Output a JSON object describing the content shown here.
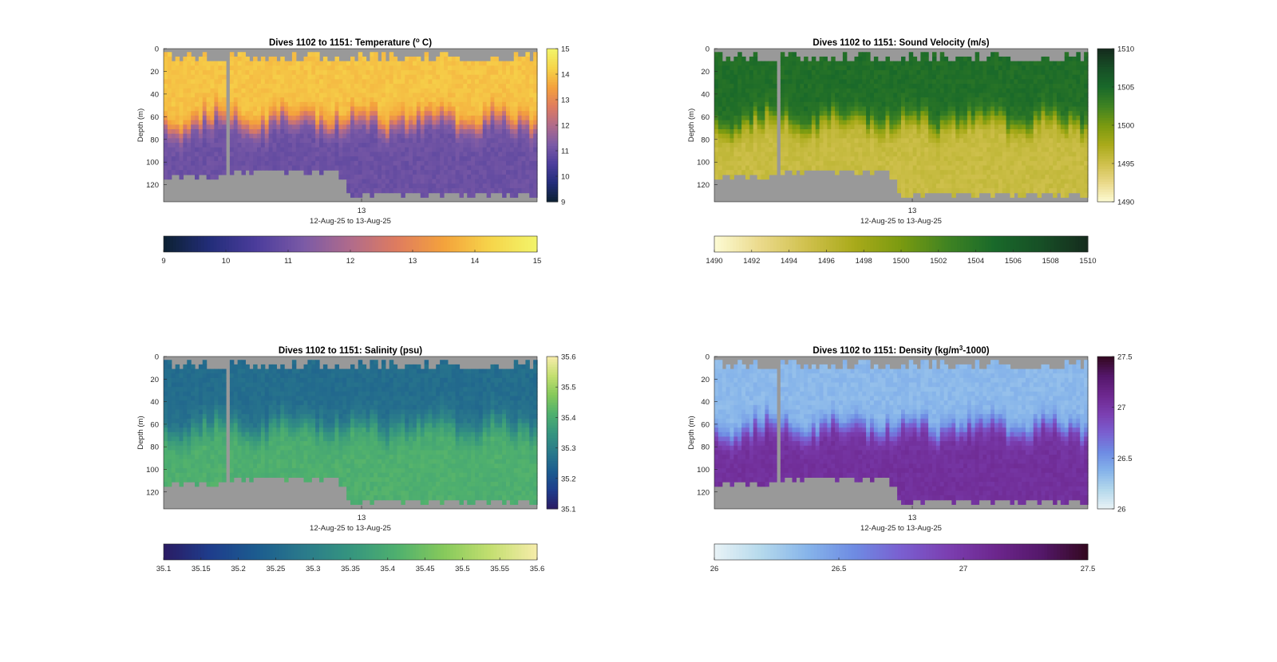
{
  "figure": {
    "background": "#ffffff",
    "bathy_color": "#999999"
  },
  "chart_data": [
    {
      "type": "heatmap",
      "id": "temperature",
      "title_parts": [
        "Dives 1102 to 1151: Temperature (",
        "o",
        " C)"
      ],
      "ylabel": "Depth (m)",
      "xlabel": "12-Aug-25 to 13-Aug-25",
      "x_tick_label": "13",
      "y_ticks": [
        0,
        20,
        40,
        60,
        80,
        100,
        120
      ],
      "ylim": [
        0,
        135
      ],
      "y_reversed": true,
      "clim": [
        9,
        15
      ],
      "cb_ticks_vertical": [
        "9",
        "10",
        "11",
        "12",
        "13",
        "14",
        "15"
      ],
      "cb_ticks_horizontal": [
        "9",
        "10",
        "11",
        "12",
        "13",
        "14",
        "15"
      ],
      "colormap": [
        "#0c2132",
        "#232d7a",
        "#4c3d9c",
        "#7b5aa6",
        "#b06b8b",
        "#df7c5f",
        "#f4a23c",
        "#f6d54a",
        "#f2f46a"
      ],
      "surface_value": 14.0,
      "deep_value": 11.0,
      "thermocline_m": 62,
      "transition_m": 18
    },
    {
      "type": "heatmap",
      "id": "sound_velocity",
      "title_parts": [
        "Dives 1102 to 1151: Sound Velocity (m/s)"
      ],
      "ylabel": "Depth (m)",
      "xlabel": "12-Aug-25 to 13-Aug-25",
      "x_tick_label": "13",
      "y_ticks": [
        0,
        20,
        40,
        60,
        80,
        100,
        120
      ],
      "ylim": [
        0,
        135
      ],
      "y_reversed": true,
      "clim": [
        1490,
        1510
      ],
      "cb_ticks_vertical": [
        "1490",
        "1495",
        "1500",
        "1505",
        "1510"
      ],
      "cb_ticks_horizontal": [
        "1490",
        "1492",
        "1494",
        "1496",
        "1498",
        "1500",
        "1502",
        "1504",
        "1506",
        "1508",
        "1510"
      ],
      "colormap": [
        "#fdfbd4",
        "#ead98a",
        "#cfc04c",
        "#a9aa1a",
        "#7a9a10",
        "#3f8322",
        "#19692a",
        "#174f26",
        "#152b1d"
      ],
      "surface_value": 1504.5,
      "deep_value": 1495.5,
      "thermocline_m": 62,
      "transition_m": 18
    },
    {
      "type": "heatmap",
      "id": "salinity",
      "title_parts": [
        "Dives 1102 to 1151: Salinity (psu)"
      ],
      "ylabel": "Depth (m)",
      "xlabel": "12-Aug-25 to 13-Aug-25",
      "x_tick_label": "13",
      "y_ticks": [
        0,
        20,
        40,
        60,
        80,
        100,
        120
      ],
      "ylim": [
        0,
        135
      ],
      "y_reversed": true,
      "clim": [
        35.1,
        35.6
      ],
      "cb_ticks_vertical": [
        "35.1",
        "35.2",
        "35.3",
        "35.4",
        "35.5",
        "35.6"
      ],
      "cb_ticks_horizontal": [
        "35.1",
        "35.15",
        "35.2",
        "35.25",
        "35.3",
        "35.35",
        "35.4",
        "35.45",
        "35.5",
        "35.55",
        "35.6"
      ],
      "colormap": [
        "#2a1b63",
        "#1e3d8c",
        "#1c5c8f",
        "#2a7a8b",
        "#35957f",
        "#4fb06e",
        "#86c95b",
        "#c3df70",
        "#f6ecaa"
      ],
      "surface_value": 35.26,
      "deep_value": 35.41,
      "thermocline_m": 60,
      "transition_m": 22
    },
    {
      "type": "heatmap",
      "id": "density",
      "title_parts": [
        "Dives 1102 to 1151: Density (kg/m",
        "3",
        "-1000)"
      ],
      "ylabel": "Depth (m)",
      "xlabel": "12-Aug-25 to 13-Aug-25",
      "x_tick_label": "13",
      "y_ticks": [
        0,
        20,
        40,
        60,
        80,
        100,
        120
      ],
      "ylim": [
        0,
        135
      ],
      "y_reversed": true,
      "clim": [
        26,
        27.5
      ],
      "cb_ticks_vertical": [
        "26",
        "26.5",
        "27",
        "27.5"
      ],
      "cb_ticks_horizontal": [
        "26",
        "26.5",
        "27",
        "27.5"
      ],
      "colormap": [
        "#e9f3f6",
        "#b5d9ec",
        "#86b4ea",
        "#6e8be3",
        "#7a5fd0",
        "#7b3fb1",
        "#6d278e",
        "#54176a",
        "#33081f"
      ],
      "surface_value": 26.35,
      "deep_value": 27.05,
      "thermocline_m": 62,
      "transition_m": 18
    }
  ]
}
